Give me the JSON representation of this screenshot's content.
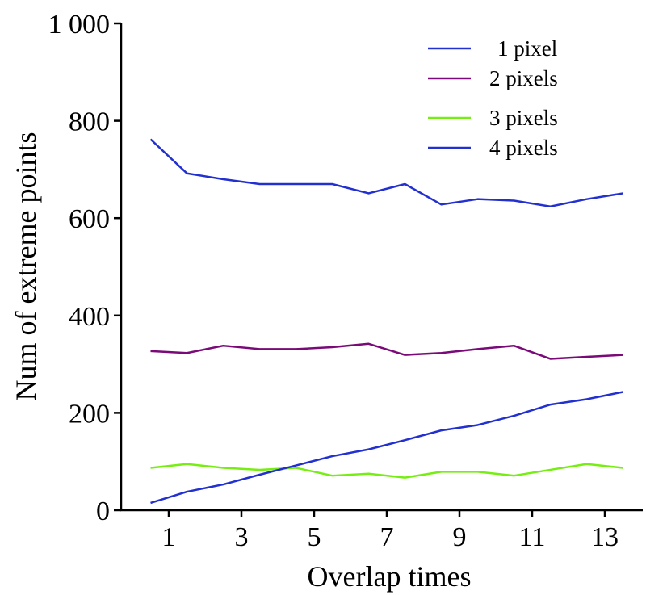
{
  "chart_data": {
    "type": "line",
    "title": "",
    "xlabel": "Overlap times",
    "ylabel": "Num of extreme points",
    "xlim": [
      0,
      14.3
    ],
    "ylim": [
      0,
      1000
    ],
    "x_ticks": [
      1,
      3,
      5,
      7,
      9,
      11,
      13
    ],
    "x_tick_labels": [
      "1",
      "3",
      "5",
      "7",
      "9",
      "11",
      "13"
    ],
    "y_ticks": [
      0,
      200,
      400,
      600,
      800,
      1000
    ],
    "y_tick_labels": [
      "0",
      "200",
      "400",
      "600",
      "800",
      "1 000"
    ],
    "grid": false,
    "legend_position": "top-right",
    "x": [
      0.5,
      1.5,
      2.5,
      3.5,
      4.5,
      5.5,
      6.5,
      7.5,
      8.5,
      9.5,
      10.5,
      11.5,
      12.5,
      13.5
    ],
    "series": [
      {
        "name": "1 pixel",
        "color": "#2230d0",
        "values": [
          762,
          692,
          680,
          670,
          670,
          670,
          651,
          670,
          628,
          639,
          636,
          624,
          639,
          651
        ]
      },
      {
        "name": "2 pixels",
        "color": "#7a0a78",
        "values": [
          327,
          323,
          338,
          331,
          331,
          335,
          342,
          319,
          323,
          331,
          338,
          311,
          315,
          319
        ]
      },
      {
        "name": "3 pixels",
        "color": "#77ee11",
        "values": [
          87,
          95,
          87,
          83,
          87,
          71,
          75,
          67,
          79,
          79,
          71,
          83,
          95,
          87
        ]
      },
      {
        "name": "4 pixels",
        "color": "#2230d0",
        "values": [
          15,
          38,
          53,
          73,
          92,
          111,
          125,
          144,
          164,
          175,
          194,
          217,
          228,
          243
        ]
      }
    ]
  }
}
